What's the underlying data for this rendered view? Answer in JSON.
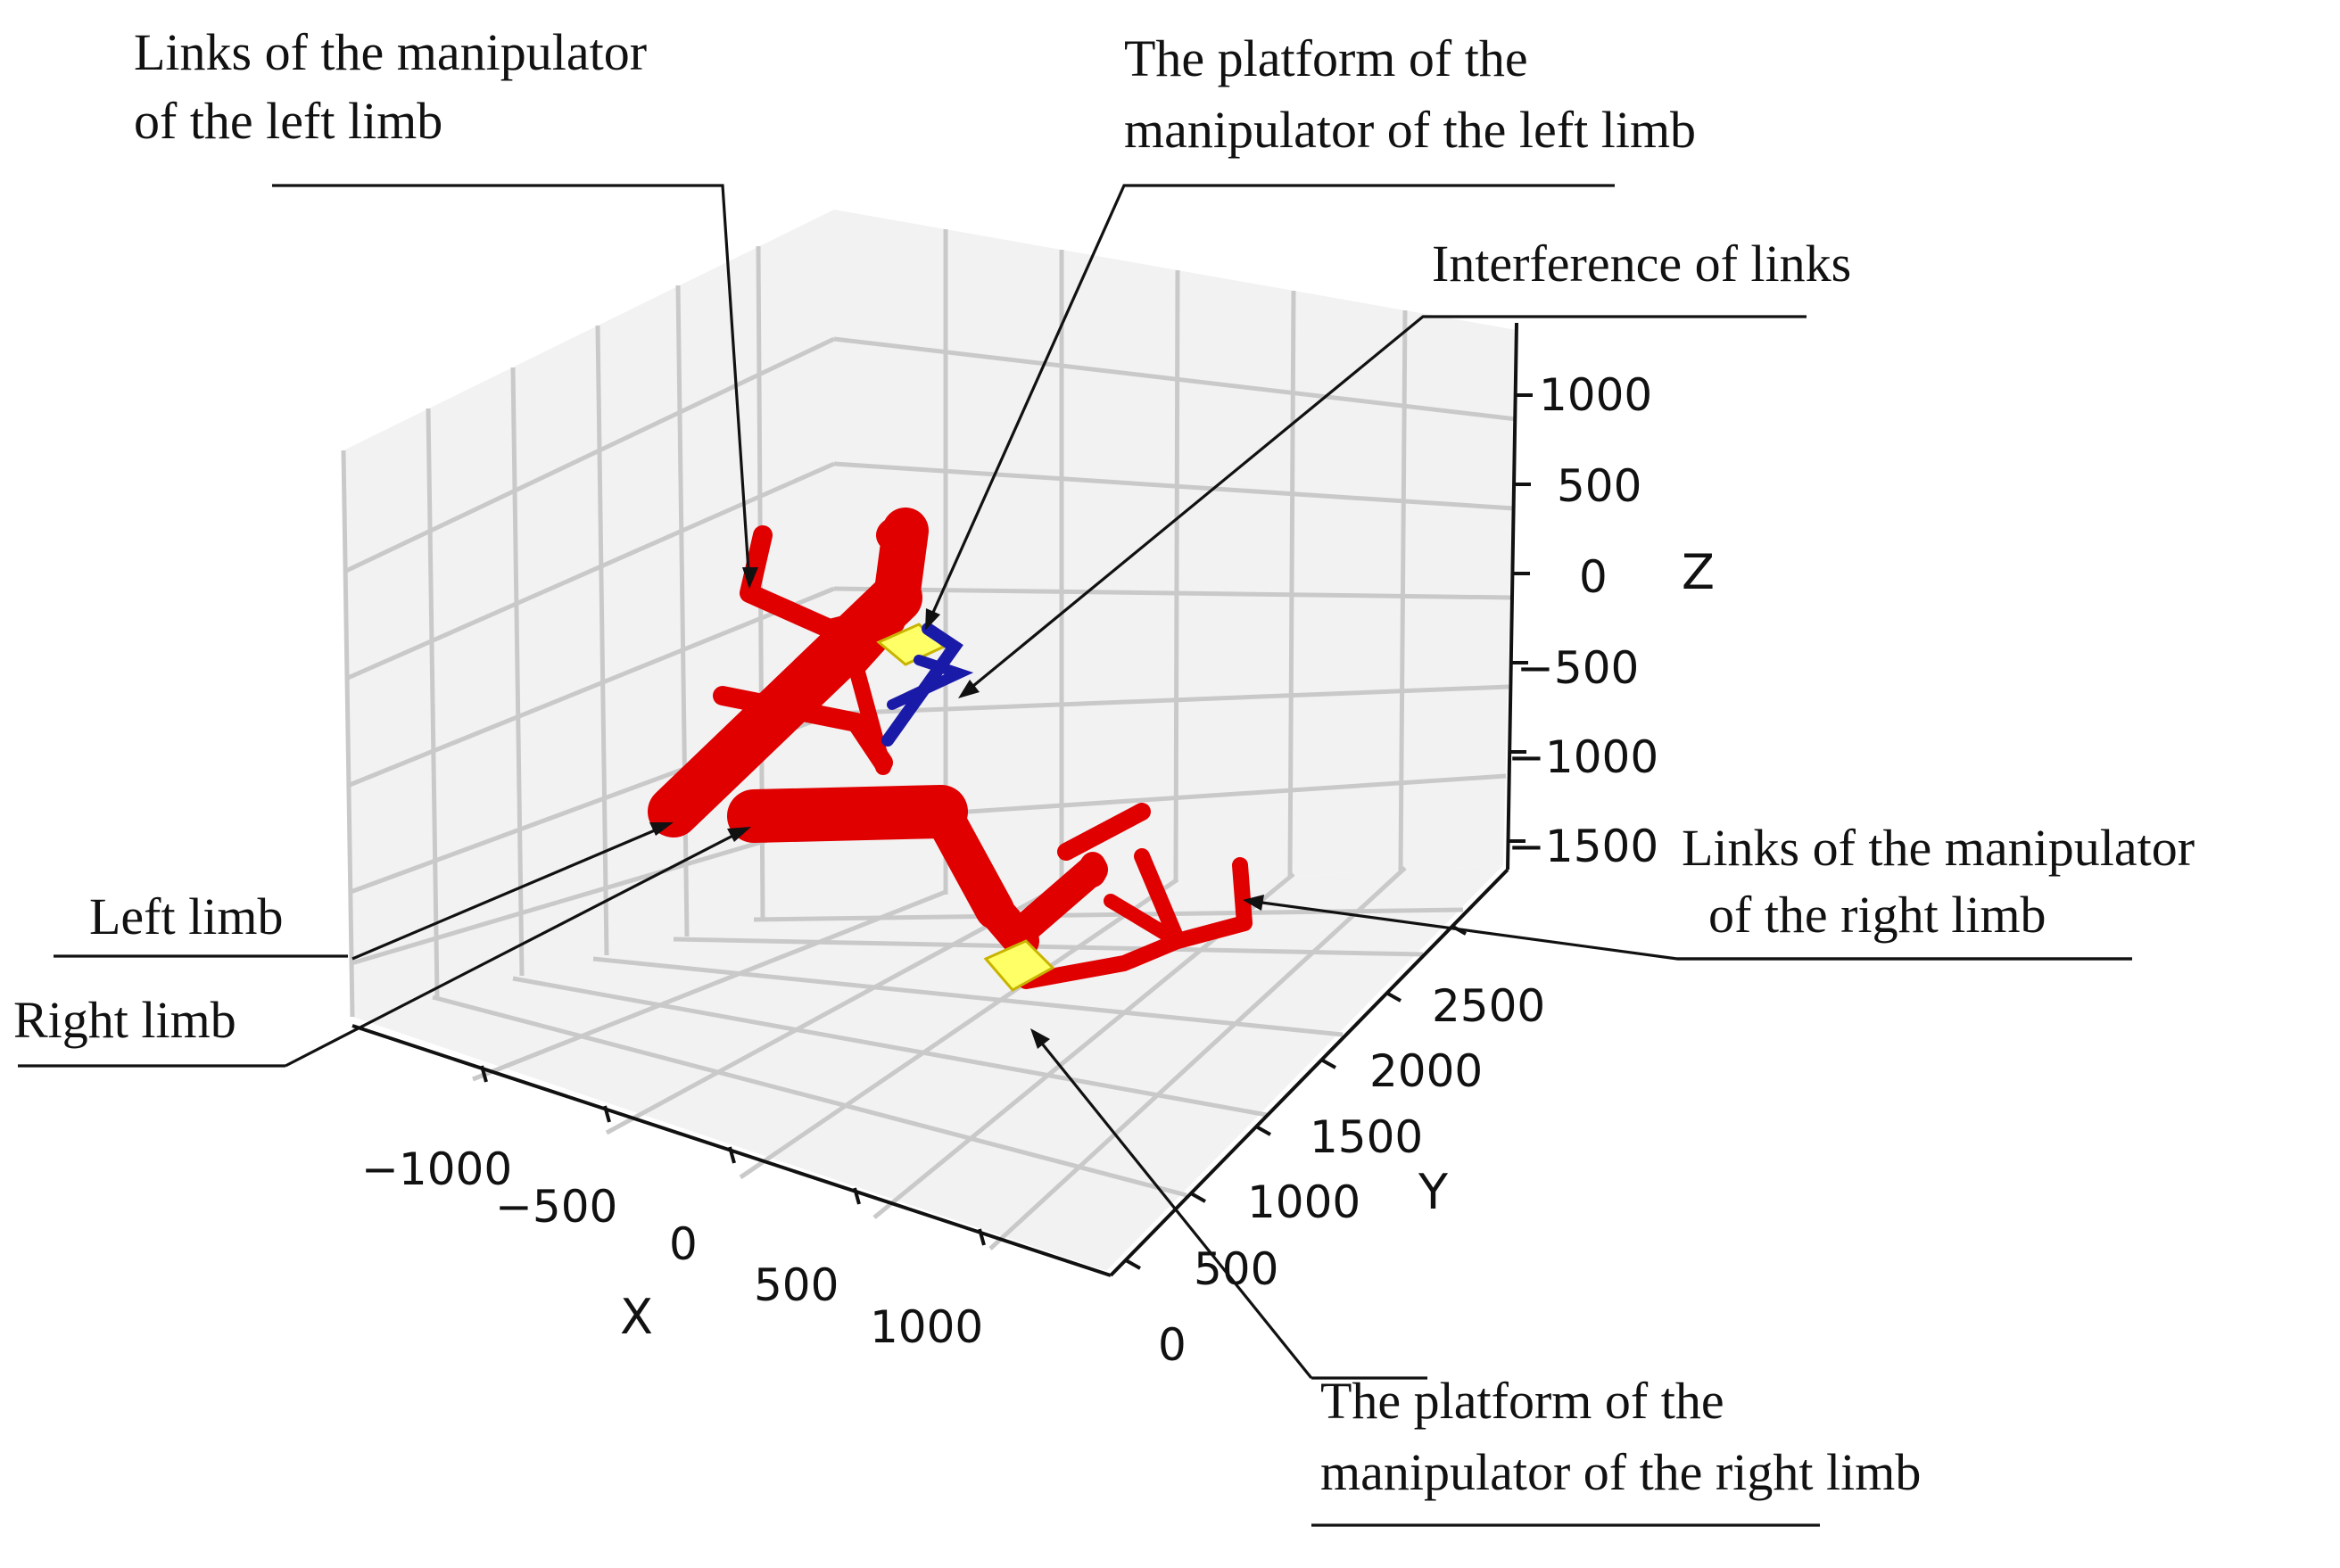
{
  "annotations": {
    "links_left": [
      "Links of the manipulator",
      "of the left limb"
    ],
    "platform_left": [
      "The platform of the",
      "manipulator of the left limb"
    ],
    "interference": [
      "Interference of links"
    ],
    "links_right": [
      "Links of the  manipulator",
      "of the right limb"
    ],
    "left_limb": [
      "Left limb"
    ],
    "right_limb": [
      "Right limb"
    ],
    "platform_right": [
      "The platform of the",
      "manipulator of the right limb"
    ]
  },
  "axes": {
    "x": {
      "label": "X",
      "ticks": [
        "−1000",
        "−500",
        "0",
        "500",
        "1000"
      ]
    },
    "y": {
      "label": "Y",
      "ticks": [
        "0",
        "500",
        "1000",
        "1500",
        "2000",
        "2500"
      ]
    },
    "z": {
      "label": "Z",
      "ticks": [
        "1000",
        "500",
        "0",
        "−500",
        "−1000",
        "−1500"
      ]
    }
  },
  "colors": {
    "limb": "#e00000",
    "platform": "#ffff66",
    "interference": "#1a1aa8",
    "grid": "#c9c9c9"
  }
}
